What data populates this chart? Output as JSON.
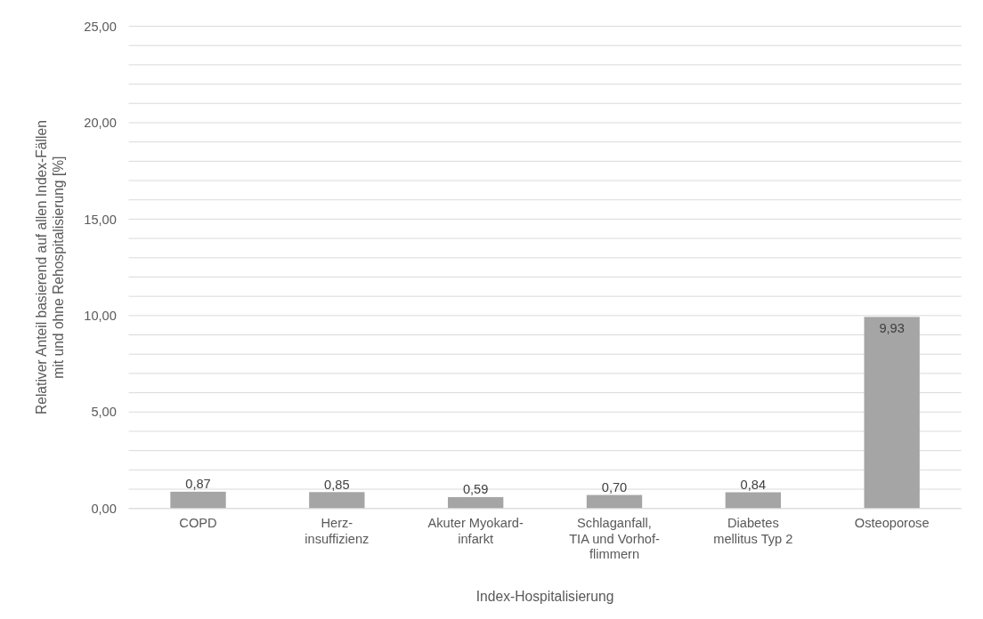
{
  "chart_data": {
    "type": "bar",
    "categories": [
      "COPD",
      "Herz-insuffizienz",
      "Akuter Myokard-infarkt",
      "Schlaganfall, TIA und Vorhof-flimmern",
      "Diabetes mellitus Typ 2",
      "Osteoporose"
    ],
    "values": [
      0.87,
      0.85,
      0.59,
      0.7,
      0.84,
      9.93
    ],
    "value_labels": [
      "0,87",
      "0,85",
      "0,59",
      "0,70",
      "0,84",
      "9,93"
    ],
    "color": "#a5a5a5",
    "xlabel": "Index-Hospitalisierung",
    "ylabel": "Relativer Anteil basierend auf allen Index-Fällen mit und ohne Rehospitalisierung [%]",
    "ylim": [
      0,
      25
    ],
    "yticks": [
      {
        "value": 0,
        "label": "0,00"
      },
      {
        "value": 1,
        "label": null
      },
      {
        "value": 2,
        "label": null
      },
      {
        "value": 3,
        "label": null
      },
      {
        "value": 4,
        "label": null
      },
      {
        "value": 5,
        "label": "5,00"
      },
      {
        "value": 6,
        "label": null
      },
      {
        "value": 7,
        "label": null
      },
      {
        "value": 8,
        "label": null
      },
      {
        "value": 9,
        "label": null
      },
      {
        "value": 10,
        "label": "10,00"
      },
      {
        "value": 11,
        "label": null
      },
      {
        "value": 12,
        "label": null
      },
      {
        "value": 13,
        "label": null
      },
      {
        "value": 14,
        "label": null
      },
      {
        "value": 15,
        "label": "15,00"
      },
      {
        "value": 16,
        "label": null
      },
      {
        "value": 17,
        "label": null
      },
      {
        "value": 18,
        "label": null
      },
      {
        "value": 19,
        "label": null
      },
      {
        "value": 20,
        "label": "20,00"
      },
      {
        "value": 21,
        "label": null
      },
      {
        "value": 22,
        "label": null
      },
      {
        "value": 23,
        "label": null
      },
      {
        "value": 24,
        "label": null
      },
      {
        "value": 25,
        "label": "25,00"
      }
    ],
    "grid": "y"
  }
}
